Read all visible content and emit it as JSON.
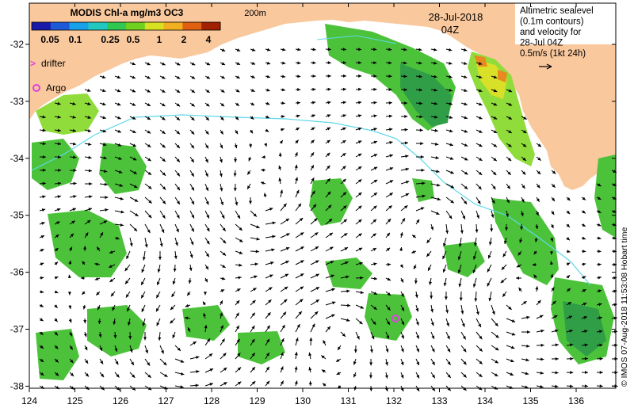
{
  "colorbar": {
    "title": "MODIS Chl-a mg/m3 OC3",
    "ticks": [
      "0.05",
      "0.1",
      "0.25",
      "0.5",
      "1",
      "2",
      "4"
    ],
    "colors": [
      "#1a1aa8",
      "#1e5ad8",
      "#18a0e8",
      "#20c8c0",
      "#30c850",
      "#70d020",
      "#d8e020",
      "#f0b020",
      "#e06010",
      "#a02000"
    ]
  },
  "contour_label": "200m",
  "date": "28-Jul-2018",
  "time": "04Z",
  "legend": {
    "drifter_label": "drifter",
    "argo_label": "Argo",
    "altimetry_lines": [
      "Altimetric sealevel",
      "(0.1m contours)",
      "and velocity for",
      "28-Jul 04Z",
      "0.5m/s (1kt 24h)"
    ]
  },
  "axes": {
    "x_ticks": [
      "124",
      "125",
      "126",
      "127",
      "128",
      "129",
      "130",
      "131",
      "132",
      "133",
      "134",
      "135",
      "136"
    ],
    "y_ticks": [
      "-32",
      "-33",
      "-34",
      "-35",
      "-36",
      "-37",
      "-38"
    ]
  },
  "credit": "© IMOS 07-Aug-2018 11:53:08 Hobart time",
  "colors": {
    "land": "#f9c89d",
    "chl_dark": "#2f9e47",
    "chl_mid": "#4cc23a",
    "chl_light": "#8fdc3a",
    "chl_yellow": "#d8e028",
    "chl_orange": "#e88a20",
    "contour": "#5fd8e8",
    "argo": "#e040e0",
    "arrow": "#000000"
  }
}
